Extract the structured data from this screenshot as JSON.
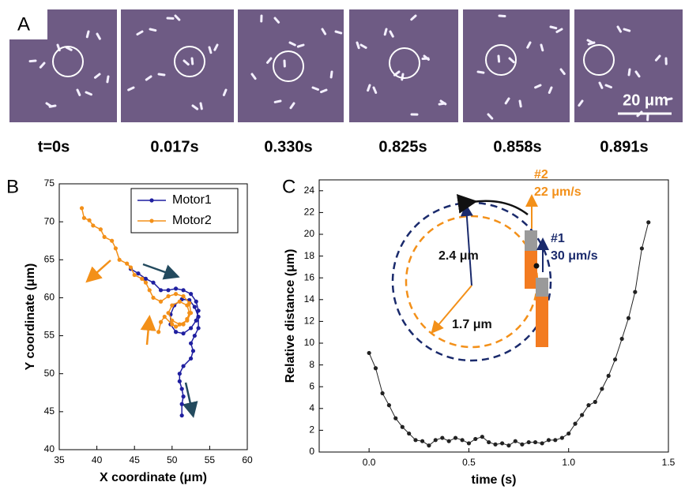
{
  "panel_a": {
    "label": "A",
    "frames": [
      "t=0s",
      "0.017s",
      "0.330s",
      "0.825s",
      "0.858s",
      "0.891s"
    ],
    "scale_bar": "20 μm"
  },
  "chart_data": [
    {
      "type": "line",
      "panel": "B",
      "xlabel": "X coordinate (μm)",
      "ylabel": "Y coordinate (μm)",
      "xlim": [
        35,
        60
      ],
      "xticks": [
        35,
        40,
        45,
        50,
        55,
        60
      ],
      "ylim": [
        40,
        75
      ],
      "yticks": [
        40,
        45,
        50,
        55,
        60,
        65,
        70,
        75
      ],
      "legend": "upper right",
      "series": [
        {
          "name": "Motor1",
          "color": "#1f1fa0",
          "x": [
            44.5,
            45.5,
            46.5,
            47.5,
            48.5,
            49.5,
            50.5,
            51.5,
            52.5,
            53.2,
            53.5,
            53.2,
            52.5,
            51.5,
            50.5,
            49.8,
            49.8,
            50.3,
            51.3,
            52.3,
            53,
            53.5,
            53.5,
            53,
            52.5,
            52.8,
            52.5,
            51.5,
            51,
            51,
            51.3,
            51.5,
            51.3,
            51.3
          ],
          "values": [
            63.8,
            63.2,
            62.5,
            62,
            61,
            61,
            61.2,
            61,
            60.5,
            59.5,
            58.3,
            57,
            56,
            55.3,
            55.5,
            56.5,
            57.8,
            59,
            59.8,
            59.7,
            58.8,
            57.5,
            56,
            55,
            54,
            53,
            52,
            51,
            50,
            49,
            48,
            47,
            46,
            44.5
          ]
        },
        {
          "name": "Motor2",
          "color": "#f39019",
          "x": [
            38,
            38.3,
            39,
            39.5,
            40.5,
            41,
            42,
            42.5,
            43,
            44,
            44.5,
            45,
            46,
            46.5,
            47,
            47.5,
            48.5,
            49.5,
            50.5,
            51.5,
            52.3,
            52.5,
            52,
            51,
            50,
            49.5,
            50,
            51,
            52,
            52.3,
            52,
            51.5,
            50.5,
            50,
            49,
            48.5,
            48.2
          ],
          "values": [
            71.8,
            70.5,
            70.2,
            69.5,
            69,
            68,
            67.5,
            66.5,
            65,
            64.5,
            64,
            63,
            62.5,
            62,
            61,
            60,
            59.5,
            60.2,
            60.5,
            60.2,
            59.3,
            58,
            57,
            56.5,
            57,
            58,
            59,
            59.5,
            59,
            58,
            57.2,
            56.5,
            56.2,
            56.5,
            57.5,
            56.8,
            55.5
          ]
        }
      ]
    },
    {
      "type": "line",
      "panel": "C",
      "xlabel": "time (s)",
      "ylabel": "Relative distance (μm)",
      "xlim": [
        -0.25,
        1.5
      ],
      "xticks": [
        {
          "value": 0,
          "label": "0.0"
        },
        0.5,
        {
          "value": 1,
          "label": "1.0"
        },
        1.5
      ],
      "ylim": [
        0,
        25
      ],
      "yticks": [
        0,
        2,
        4,
        6,
        8,
        10,
        12,
        14,
        16,
        18,
        20,
        22,
        24
      ],
      "color": "#222222",
      "x": [
        0,
        0.033,
        0.067,
        0.1,
        0.133,
        0.167,
        0.2,
        0.233,
        0.267,
        0.3,
        0.333,
        0.367,
        0.4,
        0.433,
        0.467,
        0.5,
        0.533,
        0.567,
        0.6,
        0.633,
        0.667,
        0.7,
        0.733,
        0.767,
        0.8,
        0.833,
        0.867,
        0.9,
        0.933,
        0.967,
        1.0,
        1.033,
        1.067,
        1.1,
        1.133,
        1.167,
        1.2,
        1.233,
        1.267,
        1.3,
        1.333,
        1.367,
        1.4
      ],
      "values": [
        9.1,
        7.7,
        5.4,
        4.3,
        3.1,
        2.3,
        1.7,
        1.1,
        1.0,
        0.6,
        1.1,
        1.3,
        1.0,
        1.3,
        1.1,
        0.8,
        1.2,
        1.4,
        0.9,
        0.7,
        0.8,
        0.6,
        1.0,
        0.7,
        0.9,
        0.9,
        0.8,
        1.1,
        1.1,
        1.3,
        1.7,
        2.6,
        3.4,
        4.3,
        4.6,
        5.8,
        7.0,
        8.5,
        10.4,
        12.3,
        14.7,
        18.7,
        21.1
      ],
      "annotations": [
        {
          "text": "#2",
          "color": "#f39019"
        },
        {
          "text": "22 μm/s",
          "color": "#f39019"
        },
        {
          "text": "#1",
          "color": "#1a2a6c"
        },
        {
          "text": "30 μm/s",
          "color": "#1a2a6c"
        },
        {
          "text": "2.4 μm",
          "color": "#111111"
        },
        {
          "text": "1.7 μm",
          "color": "#111111"
        }
      ]
    }
  ]
}
